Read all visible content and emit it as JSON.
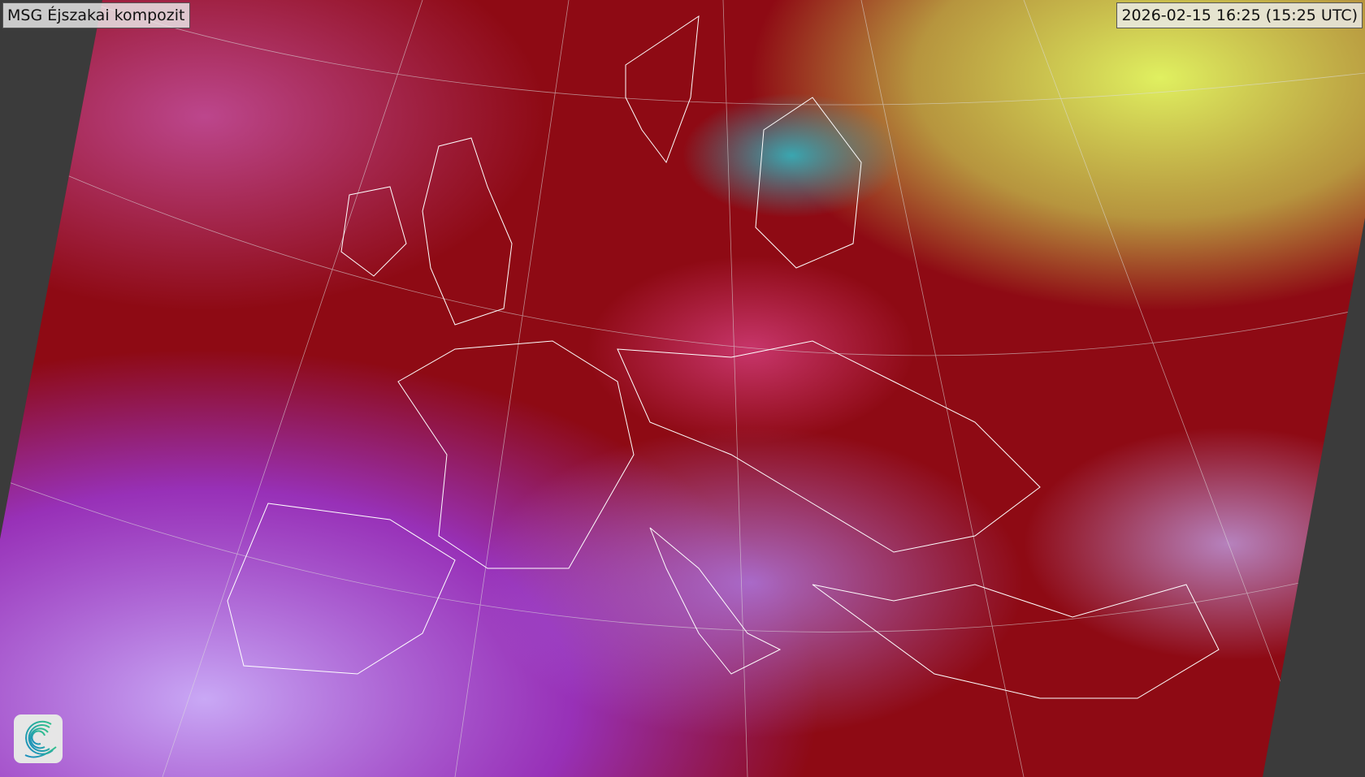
{
  "title": "MSG Éjszakai kompozit",
  "timestamp": "2026-02-15 16:25 (15:25 UTC)",
  "logo": {
    "icon": "spiral-logo-icon",
    "colors": [
      "#2ab39a",
      "#1c8fb8"
    ]
  },
  "colors": {
    "background": "#3b3b3b",
    "dominant": "#8e0a14",
    "low_cloud": "#b090f0",
    "high_cloud": "#d8ec50",
    "sea_clear": "#3aa6b0",
    "borders": "#ffffff"
  }
}
